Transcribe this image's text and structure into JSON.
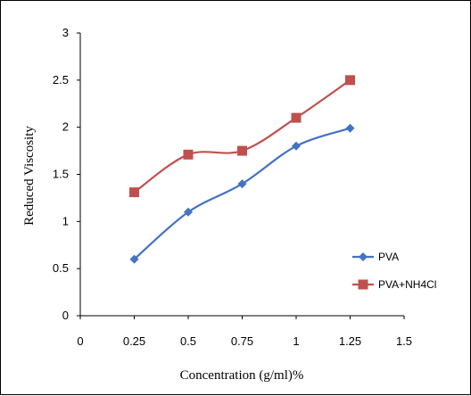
{
  "chart_data": {
    "type": "line",
    "title": "",
    "xlabel": "Concentration (g/ml)%",
    "ylabel": "Reduced Viscosity",
    "xlim": [
      0,
      1.5
    ],
    "ylim": [
      0,
      3
    ],
    "x_ticks": [
      "0",
      "0.25",
      "0.5",
      "0.75",
      "1",
      "1.25",
      "1.5"
    ],
    "y_ticks": [
      "0",
      "0.5",
      "1",
      "1.5",
      "2",
      "2.5",
      "3"
    ],
    "grid": false,
    "legend_position": "right",
    "series": [
      {
        "name": "PVA",
        "marker": "diamond",
        "color": "#4472C4",
        "x": [
          0.25,
          0.5,
          0.75,
          1,
          1.25
        ],
        "y": [
          0.6,
          1.1,
          1.4,
          1.8,
          1.99
        ]
      },
      {
        "name": "PVA+NH4Cl",
        "marker": "square",
        "color": "#C0504D",
        "x": [
          0.25,
          0.5,
          0.75,
          1,
          1.25
        ],
        "y": [
          1.31,
          1.71,
          1.75,
          2.1,
          2.5
        ]
      }
    ]
  }
}
